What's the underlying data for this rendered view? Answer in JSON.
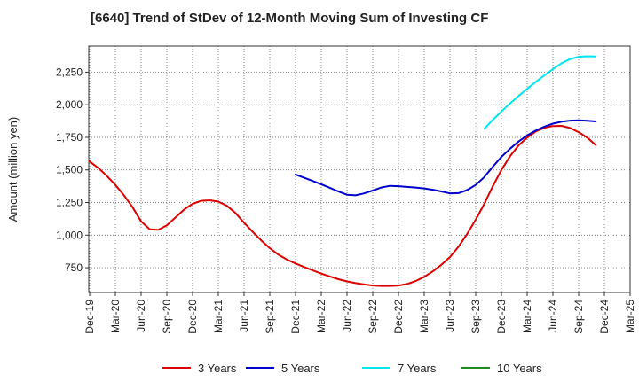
{
  "chart_data": {
    "type": "line",
    "title": "[6640]  Trend of StDev of 12-Month Moving Sum of Investing CF",
    "ylabel": "Amount (million yen)",
    "xlabel": "",
    "ylim": [
      560,
      2450
    ],
    "yticks": [
      750,
      1000,
      1250,
      1500,
      1750,
      2000,
      2250
    ],
    "ytick_labels": [
      "750",
      "1,000",
      "1,250",
      "1,500",
      "1,750",
      "2,000",
      "2,250"
    ],
    "x_categories": [
      "Dec-19",
      "Mar-20",
      "Jun-20",
      "Sep-20",
      "Dec-20",
      "Mar-21",
      "Jun-21",
      "Sep-21",
      "Dec-21",
      "Mar-22",
      "Jun-22",
      "Sep-22",
      "Dec-22",
      "Mar-23",
      "Jun-23",
      "Sep-23",
      "Dec-23",
      "Mar-24",
      "Jun-24",
      "Sep-24",
      "Dec-24",
      "Mar-25"
    ],
    "grid": true,
    "legend_position": "bottom",
    "series": [
      {
        "name": "3 Years",
        "color": "#dd0000",
        "points": [
          [
            "Dec-19",
            1565
          ],
          [
            "Jan-20",
            1515
          ],
          [
            "Feb-20",
            1455
          ],
          [
            "Mar-20",
            1385
          ],
          [
            "Apr-20",
            1305
          ],
          [
            "May-20",
            1215
          ],
          [
            "Jun-20",
            1105
          ],
          [
            "Jul-20",
            1045
          ],
          [
            "Aug-20",
            1040
          ],
          [
            "Sep-20",
            1075
          ],
          [
            "Oct-20",
            1135
          ],
          [
            "Nov-20",
            1195
          ],
          [
            "Dec-20",
            1240
          ],
          [
            "Jan-21",
            1263
          ],
          [
            "Feb-21",
            1267
          ],
          [
            "Mar-21",
            1257
          ],
          [
            "Apr-21",
            1225
          ],
          [
            "May-21",
            1170
          ],
          [
            "Jun-21",
            1095
          ],
          [
            "Jul-21",
            1025
          ],
          [
            "Aug-21",
            960
          ],
          [
            "Sep-21",
            900
          ],
          [
            "Oct-21",
            850
          ],
          [
            "Nov-21",
            812
          ],
          [
            "Dec-21",
            782
          ],
          [
            "Jan-22",
            755
          ],
          [
            "Feb-22",
            730
          ],
          [
            "Mar-22",
            705
          ],
          [
            "Apr-22",
            683
          ],
          [
            "May-22",
            662
          ],
          [
            "Jun-22",
            645
          ],
          [
            "Jul-22",
            632
          ],
          [
            "Aug-22",
            622
          ],
          [
            "Sep-22",
            614
          ],
          [
            "Oct-22",
            610
          ],
          [
            "Nov-22",
            610
          ],
          [
            "Dec-22",
            614
          ],
          [
            "Jan-23",
            625
          ],
          [
            "Feb-23",
            648
          ],
          [
            "Mar-23",
            680
          ],
          [
            "Apr-23",
            722
          ],
          [
            "May-23",
            772
          ],
          [
            "Jun-23",
            832
          ],
          [
            "Jul-23",
            912
          ],
          [
            "Aug-23",
            1008
          ],
          [
            "Sep-23",
            1118
          ],
          [
            "Oct-23",
            1240
          ],
          [
            "Nov-23",
            1375
          ],
          [
            "Dec-23",
            1500
          ],
          [
            "Jan-24",
            1605
          ],
          [
            "Feb-24",
            1688
          ],
          [
            "Mar-24",
            1748
          ],
          [
            "Apr-24",
            1795
          ],
          [
            "May-24",
            1823
          ],
          [
            "Jun-24",
            1837
          ],
          [
            "Jul-24",
            1838
          ],
          [
            "Aug-24",
            1822
          ],
          [
            "Sep-24",
            1790
          ],
          [
            "Oct-24",
            1748
          ],
          [
            "Nov-24",
            1690
          ]
        ]
      },
      {
        "name": "5 Years",
        "color": "#0000cc",
        "points": [
          [
            "Dec-21",
            1465
          ],
          [
            "Jan-22",
            1440
          ],
          [
            "Feb-22",
            1415
          ],
          [
            "Mar-22",
            1390
          ],
          [
            "Apr-22",
            1363
          ],
          [
            "May-22",
            1335
          ],
          [
            "Jun-22",
            1310
          ],
          [
            "Jul-22",
            1305
          ],
          [
            "Aug-22",
            1320
          ],
          [
            "Sep-22",
            1342
          ],
          [
            "Oct-22",
            1365
          ],
          [
            "Nov-22",
            1378
          ],
          [
            "Dec-22",
            1375
          ],
          [
            "Jan-23",
            1370
          ],
          [
            "Feb-23",
            1365
          ],
          [
            "Mar-23",
            1358
          ],
          [
            "Apr-23",
            1348
          ],
          [
            "May-23",
            1335
          ],
          [
            "Jun-23",
            1320
          ],
          [
            "Jul-23",
            1322
          ],
          [
            "Aug-23",
            1345
          ],
          [
            "Sep-23",
            1385
          ],
          [
            "Oct-23",
            1445
          ],
          [
            "Nov-23",
            1525
          ],
          [
            "Dec-23",
            1600
          ],
          [
            "Jan-24",
            1663
          ],
          [
            "Feb-24",
            1718
          ],
          [
            "Mar-24",
            1765
          ],
          [
            "Apr-24",
            1802
          ],
          [
            "May-24",
            1832
          ],
          [
            "Jun-24",
            1855
          ],
          [
            "Jul-24",
            1870
          ],
          [
            "Aug-24",
            1878
          ],
          [
            "Sep-24",
            1880
          ],
          [
            "Oct-24",
            1877
          ],
          [
            "Nov-24",
            1872
          ]
        ]
      },
      {
        "name": "7 Years",
        "color": "#00e5ee",
        "points": [
          [
            "Oct-23",
            1815
          ],
          [
            "Nov-23",
            1885
          ],
          [
            "Dec-23",
            1948
          ],
          [
            "Jan-24",
            2010
          ],
          [
            "Feb-24",
            2068
          ],
          [
            "Mar-24",
            2122
          ],
          [
            "Apr-24",
            2175
          ],
          [
            "May-24",
            2225
          ],
          [
            "Jun-24",
            2273
          ],
          [
            "Jul-24",
            2318
          ],
          [
            "Aug-24",
            2350
          ],
          [
            "Sep-24",
            2368
          ],
          [
            "Oct-24",
            2372
          ],
          [
            "Nov-24",
            2370
          ]
        ]
      },
      {
        "name": "10 Years",
        "color": "#228b22",
        "points": []
      }
    ]
  }
}
